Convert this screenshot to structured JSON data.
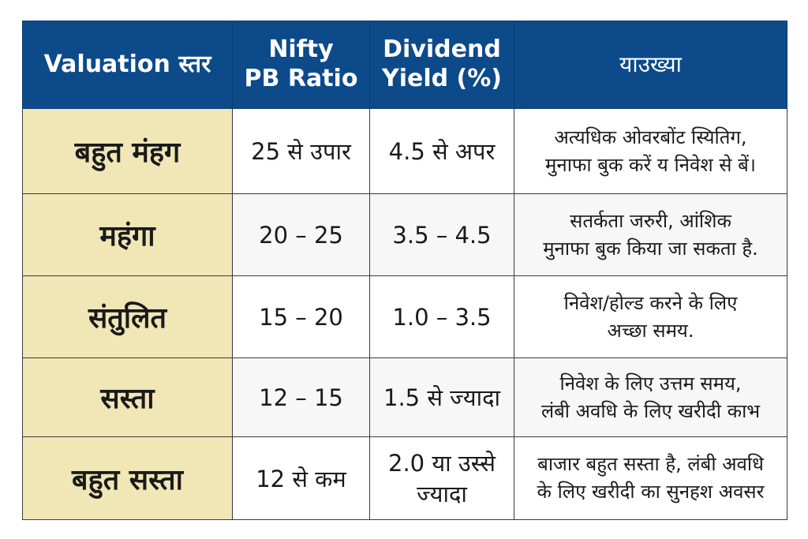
{
  "table": {
    "headers": {
      "level": "Valuation स्तर",
      "pb_line1": "Nifty",
      "pb_line2": "PB Ratio",
      "dy_line1": "Dividend",
      "dy_line2": "Yield (%)",
      "action": "याउख्या"
    },
    "rows": [
      {
        "level": "बहुत मंहग",
        "pb": "25 से उपार",
        "dy": [
          "4.5 से अपर"
        ],
        "action": [
          "अत्यधिक ओवरबोंट स्यितिग,",
          "मुनाफा बुक करें य निवेश से बें।"
        ]
      },
      {
        "level": "महंगा",
        "pb": "20 – 25",
        "dy": [
          "3.5 – 4.5"
        ],
        "action": [
          "सतर्कता जरुरी, आंशिक",
          "मुनाफा बुक किया जा सकता है."
        ]
      },
      {
        "level": "संतुलित",
        "pb": "15 – 20",
        "dy": [
          "1.0 – 3.5"
        ],
        "action": [
          "निवेश/होल्ड करने के लिए",
          "अच्छा समय."
        ]
      },
      {
        "level": "सस्ता",
        "pb": "12 – 15",
        "dy": [
          "1.5 से ज्यादा"
        ],
        "action": [
          "निवेश के लिए उत्तम समय,",
          "लंबी अवधि के लिए खरीदी काभ"
        ]
      },
      {
        "level": "बहुत सस्ता",
        "pb": "12 से कम",
        "dy": [
          "2.0 या उस्से",
          "ज्यादा"
        ],
        "action": [
          "बाजार बहुत सस्ता है, लंबी अवधि",
          "के लिए खरीदी का सुनहश अवसर"
        ]
      }
    ]
  }
}
